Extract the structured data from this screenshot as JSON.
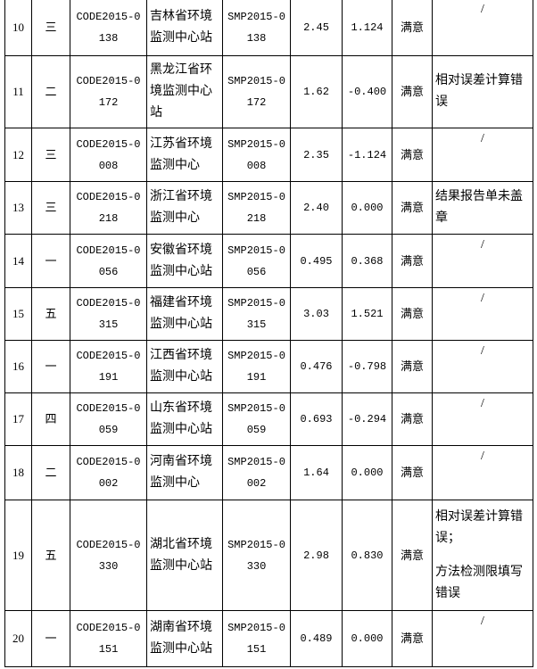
{
  "rows": [
    {
      "no": "10",
      "group": "三",
      "code": "CODE2015-0138",
      "org": "吉林省环境监测中心站",
      "sample": "SMP2015-0138",
      "value": "2.45",
      "z": "1.124",
      "result": "满意",
      "note": [
        "/"
      ]
    },
    {
      "no": "11",
      "group": "二",
      "code": "CODE2015-0172",
      "org": "黑龙江省环境监测中心站",
      "sample": "SMP2015-0172",
      "value": "1.62",
      "z": "-0.400",
      "result": "满意",
      "note": [
        "相对误差计算错误"
      ]
    },
    {
      "no": "12",
      "group": "三",
      "code": "CODE2015-0008",
      "org": "江苏省环境监测中心",
      "sample": "SMP2015-0008",
      "value": "2.35",
      "z": "-1.124",
      "result": "满意",
      "note": [
        "/"
      ]
    },
    {
      "no": "13",
      "group": "三",
      "code": "CODE2015-0218",
      "org": "浙江省环境监测中心",
      "sample": "SMP2015-0218",
      "value": "2.40",
      "z": "0.000",
      "result": "满意",
      "note": [
        "结果报告单未盖章"
      ]
    },
    {
      "no": "14",
      "group": "一",
      "code": "CODE2015-0056",
      "org": "安徽省环境监测中心站",
      "sample": "SMP2015-0056",
      "value": "0.495",
      "z": "0.368",
      "result": "满意",
      "note": [
        "/"
      ]
    },
    {
      "no": "15",
      "group": "五",
      "code": "CODE2015-0315",
      "org": "福建省环境监测中心站",
      "sample": "SMP2015-0315",
      "value": "3.03",
      "z": "1.521",
      "result": "满意",
      "note": [
        "/"
      ]
    },
    {
      "no": "16",
      "group": "一",
      "code": "CODE2015-0191",
      "org": "江西省环境监测中心站",
      "sample": "SMP2015-0191",
      "value": "0.476",
      "z": "-0.798",
      "result": "满意",
      "note": [
        "/"
      ]
    },
    {
      "no": "17",
      "group": "四",
      "code": "CODE2015-0059",
      "org": "山东省环境监测中心站",
      "sample": "SMP2015-0059",
      "value": "0.693",
      "z": "-0.294",
      "result": "满意",
      "note": [
        "/"
      ]
    },
    {
      "no": "18",
      "group": "二",
      "code": "CODE2015-0002",
      "org": "河南省环境监测中心",
      "sample": "SMP2015-0002",
      "value": "1.64",
      "z": "0.000",
      "result": "满意",
      "note": [
        "/"
      ]
    },
    {
      "no": "19",
      "group": "五",
      "code": "CODE2015-0330",
      "org": "湖北省环境监测中心站",
      "sample": "SMP2015-0330",
      "value": "2.98",
      "z": "0.830",
      "result": "满意",
      "note": [
        "相对误差计算错误；",
        "方法检测限填写错误"
      ]
    },
    {
      "no": "20",
      "group": "一",
      "code": "CODE2015-0151",
      "org": "湖南省环境监测中心站",
      "sample": "SMP2015-0151",
      "value": "0.489",
      "z": "0.000",
      "result": "满意",
      "note": [
        "/"
      ]
    }
  ]
}
